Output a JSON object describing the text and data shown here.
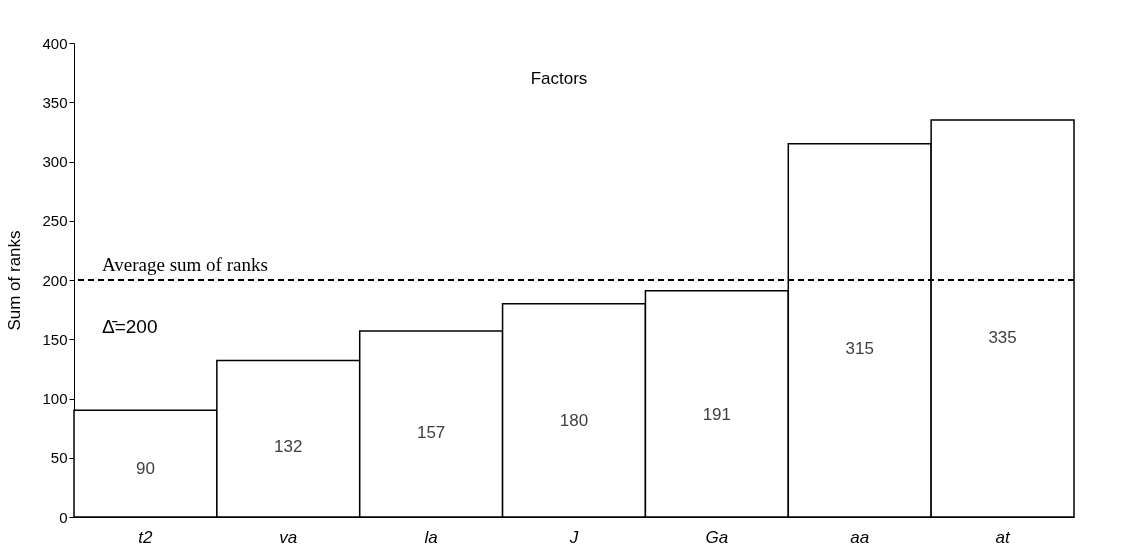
{
  "chart_data": {
    "type": "bar",
    "title": "Factors",
    "ylabel": "Sum of ranks",
    "categories": [
      "t2",
      "va",
      "la",
      "J",
      "Ga",
      "aa",
      "at"
    ],
    "values": [
      90,
      132,
      157,
      180,
      191,
      315,
      335
    ],
    "color": "#ffffff",
    "ylim": [
      0,
      400
    ],
    "yticks": [
      0,
      50,
      100,
      150,
      200,
      250,
      300,
      350,
      400
    ],
    "grid": false,
    "data_labels": true,
    "ref_lines": [
      {
        "axis": "y",
        "value": 200,
        "label": "Average sum of ranks",
        "line_style": "dashed",
        "color": "#000000"
      }
    ],
    "annotations": [
      "Δ̄=200"
    ]
  }
}
